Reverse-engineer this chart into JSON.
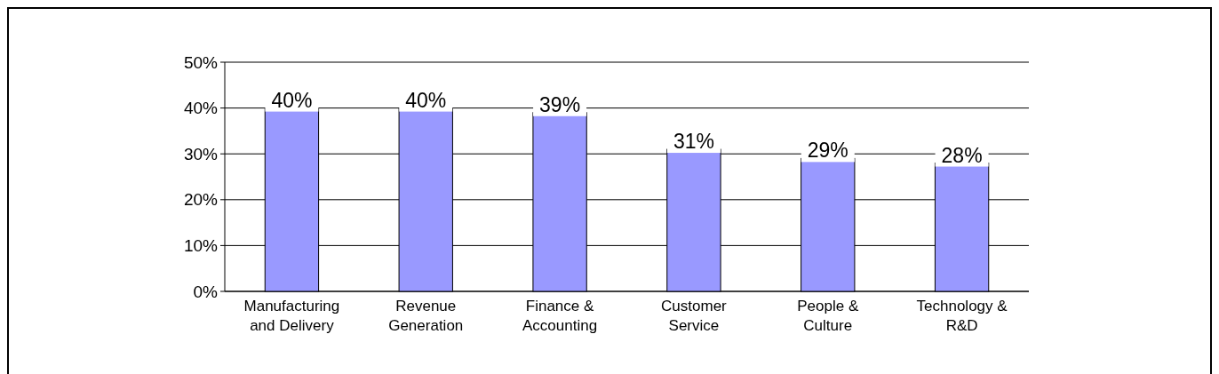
{
  "chart_data": {
    "type": "bar",
    "categories": [
      "Manufacturing and Delivery",
      "Revenue Generation",
      "Finance & Accounting",
      "Customer Service",
      "People & Culture",
      "Technology & R&D"
    ],
    "values": [
      40,
      40,
      39,
      31,
      29,
      28
    ],
    "color": "#9999ff",
    "value_labels": [
      "40%",
      "40%",
      "39%",
      "31%",
      "29%",
      "28%"
    ],
    "ylim": [
      0,
      50
    ],
    "yticks": [
      {
        "value": 0,
        "label": "0%"
      },
      {
        "value": 10,
        "label": "10%"
      },
      {
        "value": 20,
        "label": "20%"
      },
      {
        "value": 30,
        "label": "30%"
      },
      {
        "value": 40,
        "label": "40%"
      },
      {
        "value": 50,
        "label": "50%"
      }
    ],
    "grid": "y"
  }
}
